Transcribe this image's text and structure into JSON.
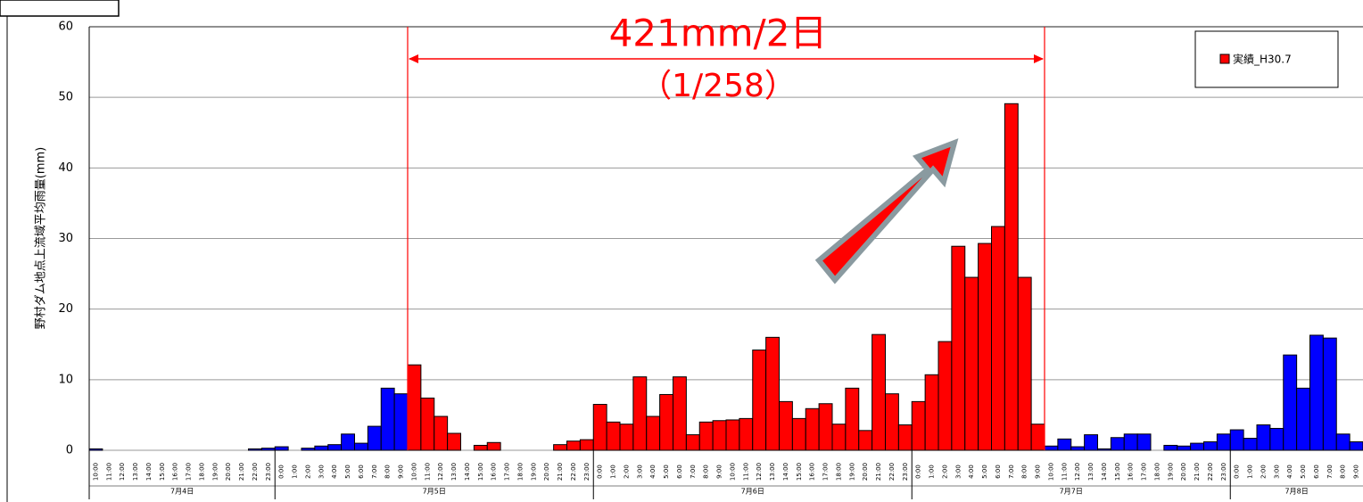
{
  "chart_data": {
    "type": "bar",
    "y_label": "野村ダム地点上流域平均雨量(mm)",
    "annotation": "421mm/2日",
    "annotation_sub": "（1/258）",
    "ylim": [
      0,
      60
    ],
    "yticks": [
      0,
      10,
      20,
      30,
      40,
      50,
      60
    ],
    "grid": true,
    "legend": "top-right",
    "categories": [
      "10:00",
      "11:00",
      "12:00",
      "13:00",
      "14:00",
      "15:00",
      "16:00",
      "17:00",
      "18:00",
      "19:00",
      "20:00",
      "21:00",
      "22:00",
      "23:00",
      "0:00",
      "1:00",
      "2:00",
      "3:00",
      "4:00",
      "5:00",
      "6:00",
      "7:00",
      "8:00",
      "9:00",
      "10:00",
      "11:00",
      "12:00",
      "13:00",
      "14:00",
      "15:00",
      "16:00",
      "17:00",
      "18:00",
      "19:00",
      "20:00",
      "21:00",
      "22:00",
      "23:00",
      "0:00",
      "1:00",
      "2:00",
      "3:00",
      "4:00",
      "5:00",
      "6:00",
      "7:00",
      "8:00",
      "9:00",
      "10:00",
      "11:00",
      "12:00",
      "13:00",
      "14:00",
      "15:00",
      "16:00",
      "17:00",
      "18:00",
      "19:00",
      "20:00",
      "21:00",
      "22:00",
      "23:00",
      "0:00",
      "1:00",
      "2:00",
      "3:00",
      "4:00",
      "5:00",
      "6:00",
      "7:00",
      "8:00",
      "9:00",
      "10:00",
      "11:00",
      "12:00",
      "13:00",
      "14:00",
      "15:00",
      "16:00",
      "17:00",
      "18:00",
      "19:00",
      "20:00",
      "21:00",
      "22:00",
      "23:00",
      "0:00",
      "1:00",
      "2:00",
      "3:00",
      "4:00",
      "5:00",
      "6:00",
      "7:00",
      "8:00",
      "9:00"
    ],
    "days": [
      "7月4日",
      "7月5日",
      "7月6日",
      "7月7日",
      "7月8日"
    ],
    "series": [
      {
        "name": "実績_H30.7",
        "color": "#ff0000",
        "other_color": "#0000ff",
        "values": [
          0.2,
          0,
          0,
          0,
          0,
          0,
          0,
          0,
          0,
          0,
          0,
          0,
          0.2,
          0.3,
          0.5,
          0,
          0.3,
          0.6,
          0.8,
          2.3,
          1,
          3.4,
          8.8,
          8,
          12.1,
          7.4,
          4.8,
          2.4,
          0,
          0.7,
          1.1,
          0,
          0,
          0,
          0,
          0.8,
          1.3,
          1.5,
          6.5,
          4,
          3.7,
          10.4,
          4.8,
          7.9,
          10.4,
          2.2,
          4,
          4.2,
          4.3,
          4.5,
          14.2,
          16,
          6.9,
          4.5,
          5.9,
          6.6,
          3.7,
          8.8,
          2.8,
          16.4,
          8,
          3.6,
          6.9,
          10.7,
          15.4,
          28.9,
          24.5,
          29.3,
          31.7,
          49.1,
          24.5,
          3.7,
          0.6,
          1.6,
          0.5,
          2.2,
          0.2,
          1.8,
          2.3,
          2.3,
          0,
          0.7,
          0.6,
          1,
          1.2,
          2.3,
          2.9,
          1.7,
          3.6,
          3.1,
          13.5,
          8.8,
          16.3,
          15.9,
          2.3,
          1.2
        ],
        "highlight": [
          false,
          false,
          false,
          false,
          false,
          false,
          false,
          false,
          false,
          false,
          false,
          false,
          false,
          false,
          false,
          false,
          false,
          false,
          false,
          false,
          false,
          false,
          false,
          false,
          true,
          true,
          true,
          true,
          true,
          true,
          true,
          true,
          true,
          true,
          true,
          true,
          true,
          true,
          true,
          true,
          true,
          true,
          true,
          true,
          true,
          true,
          true,
          true,
          true,
          true,
          true,
          true,
          true,
          true,
          true,
          true,
          true,
          true,
          true,
          true,
          true,
          true,
          true,
          true,
          true,
          true,
          true,
          true,
          true,
          true,
          true,
          true,
          false,
          false,
          false,
          false,
          false,
          false,
          false,
          false,
          false,
          false,
          false,
          false,
          false,
          false,
          false,
          false,
          false,
          false,
          false,
          false,
          false,
          false,
          false,
          false
        ]
      }
    ]
  }
}
